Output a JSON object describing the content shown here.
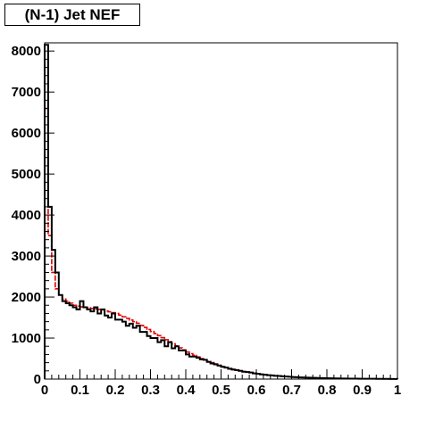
{
  "chart_data": {
    "type": "histogram",
    "title": "(N-1) Jet NEF",
    "xlabel": "",
    "ylabel": "",
    "xlim": [
      0,
      1
    ],
    "ylim": [
      0,
      8200
    ],
    "x_ticks": [
      "0",
      "0.1",
      "0.2",
      "0.3",
      "0.4",
      "0.5",
      "0.6",
      "0.7",
      "0.8",
      "0.9",
      "1"
    ],
    "x_tick_values": [
      0,
      0.1,
      0.2,
      0.3,
      0.4,
      0.5,
      0.6,
      0.7,
      0.8,
      0.9,
      1
    ],
    "y_ticks": [
      "0",
      "1000",
      "2000",
      "3000",
      "4000",
      "5000",
      "6000",
      "7000",
      "8000"
    ],
    "y_tick_values": [
      0,
      1000,
      2000,
      3000,
      4000,
      5000,
      6000,
      7000,
      8000
    ],
    "bin_width": 0.01,
    "series": [
      {
        "color": "#000000",
        "values": [
          8150,
          4200,
          3150,
          2600,
          2050,
          1900,
          1850,
          1800,
          1750,
          1700,
          1900,
          1750,
          1700,
          1650,
          1750,
          1600,
          1700,
          1550,
          1500,
          1600,
          1450,
          1450,
          1400,
          1300,
          1350,
          1250,
          1300,
          1150,
          1150,
          1050,
          1000,
          1000,
          900,
          950,
          800,
          900,
          750,
          800,
          700,
          700,
          600,
          550,
          550,
          520,
          480,
          470,
          420,
          380,
          360,
          330,
          300,
          280,
          250,
          230,
          220,
          200,
          180,
          170,
          160,
          140,
          130,
          115,
          105,
          95,
          90,
          80,
          75,
          68,
          62,
          56,
          50,
          46,
          42,
          38,
          35,
          32,
          29,
          26,
          24,
          22,
          20,
          18,
          16,
          15,
          14,
          13,
          12,
          11,
          10,
          9,
          8,
          8,
          7,
          7,
          6,
          6,
          5,
          5,
          4,
          4
        ]
      },
      {
        "color": "#e00000",
        "values": [
          6600,
          3500,
          2600,
          2200,
          2050,
          1950,
          1900,
          1850,
          1800,
          1780,
          1760,
          1750,
          1740,
          1720,
          1710,
          1700,
          1690,
          1660,
          1640,
          1620,
          1600,
          1560,
          1520,
          1480,
          1440,
          1400,
          1360,
          1310,
          1260,
          1210,
          1160,
          1110,
          1060,
          1010,
          960,
          910,
          860,
          810,
          760,
          710,
          660,
          620,
          580,
          540,
          500,
          465,
          430,
          400,
          370,
          340,
          310,
          285,
          260,
          240,
          220,
          200,
          185,
          170,
          155,
          142,
          130,
          118,
          108,
          98,
          90,
          82,
          75,
          68,
          62,
          57,
          52,
          47,
          43,
          39,
          35,
          32,
          29,
          26,
          24,
          22,
          20,
          18,
          16,
          15,
          14,
          13,
          12,
          11,
          10,
          9,
          8,
          8,
          7,
          7,
          6,
          6,
          5,
          5,
          4,
          4
        ]
      }
    ]
  }
}
